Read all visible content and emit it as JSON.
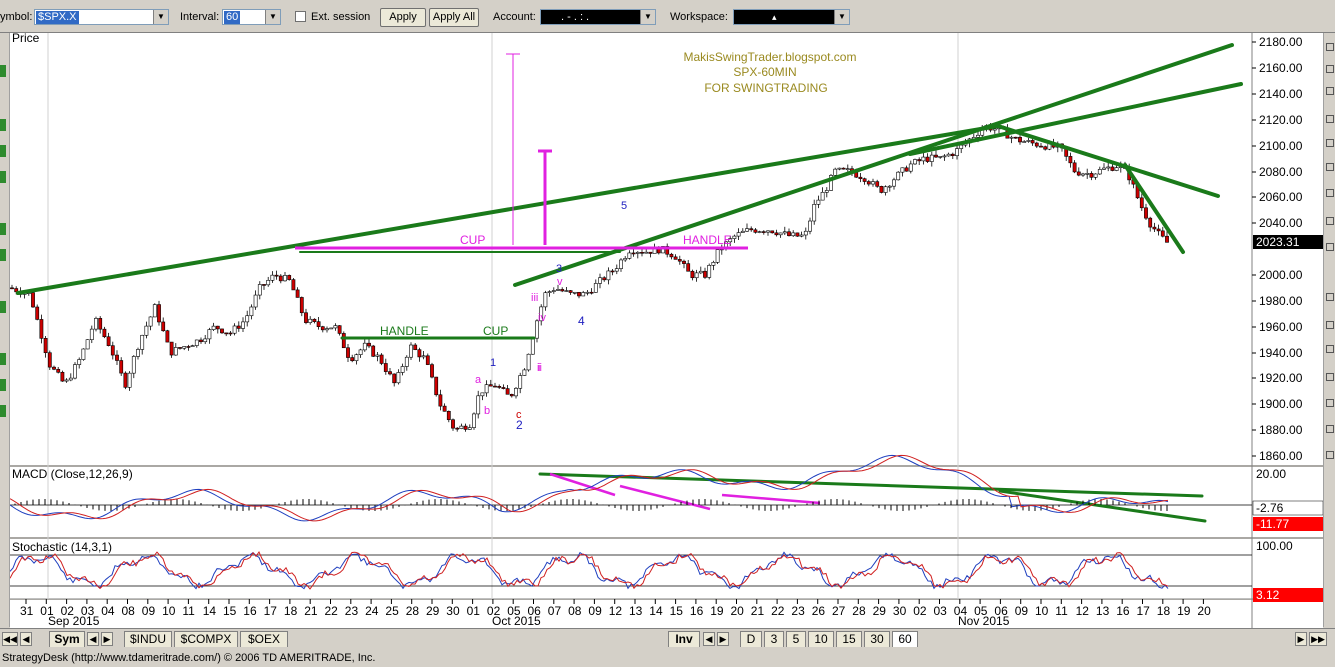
{
  "toolbar": {
    "symbol_label": "ymbol:",
    "symbol_value": "$SPX.X",
    "interval_label": "Interval:",
    "interval_value": "60",
    "ext_session_label": "Ext. session",
    "apply_label": "Apply",
    "apply_all_label": "Apply All",
    "account_label": "Account:",
    "account_value": ". - . : .",
    "workspace_label": "Workspace:",
    "workspace_value": "▴"
  },
  "price_panel": {
    "title": "Price",
    "y_ticks": [
      "2180.00",
      "2160.00",
      "2140.00",
      "2120.00",
      "2100.00",
      "2080.00",
      "2060.00",
      "2040.00",
      "2023.31",
      "2000.00",
      "1980.00",
      "1960.00",
      "1940.00",
      "1920.00",
      "1900.00",
      "1880.00",
      "1860.00"
    ],
    "last_price": "2023.31",
    "watermark": [
      "MakisSwingTrader.blogspot.com",
      "SPX-60MIN",
      "FOR SWINGTRADING"
    ],
    "pattern_labels": [
      "CUP",
      "HANDLE",
      "HANDLE",
      "CUP"
    ],
    "wave_labels": [
      "1",
      "2",
      "3",
      "4",
      "5",
      "a",
      "b",
      "c",
      "i",
      "ii",
      "iii",
      "iv",
      "v"
    ]
  },
  "macd_panel": {
    "title": "MACD (Close,12,26,9)",
    "y_ticks": [
      "20.00"
    ],
    "value_macd": "-2.76",
    "value_signal": "-11.77"
  },
  "stoch_panel": {
    "title": "Stochastic (14,3,1)",
    "y_ticks": [
      "100.00"
    ],
    "value": "3.12"
  },
  "date_axis": {
    "days": [
      "31",
      "01",
      "02",
      "03",
      "04",
      "08",
      "09",
      "10",
      "11",
      "14",
      "15",
      "16",
      "17",
      "18",
      "21",
      "22",
      "23",
      "24",
      "25",
      "28",
      "29",
      "30",
      "01",
      "02",
      "05",
      "06",
      "07",
      "08",
      "09",
      "12",
      "13",
      "14",
      "15",
      "16",
      "19",
      "20",
      "21",
      "22",
      "23",
      "26",
      "27",
      "28",
      "29",
      "30",
      "02",
      "03",
      "04",
      "05",
      "06",
      "09",
      "10",
      "11",
      "12",
      "13",
      "16",
      "17",
      "18",
      "19",
      "20"
    ],
    "months": [
      "Sep 2015",
      "Oct 2015",
      "Nov 2015"
    ]
  },
  "tabs": {
    "sym_label": "Sym",
    "symbols": [
      "$INDU",
      "$COMPX",
      "$OEX"
    ],
    "inv_label": "Inv",
    "intervals": [
      "D",
      "3",
      "5",
      "10",
      "15",
      "30",
      "60"
    ]
  },
  "status_bar": {
    "text": "StrategyDesk (http://www.tdameritrade.com/) © 2006 TD AMERITRADE, Inc."
  },
  "colors": {
    "up_candle": "#ffffff",
    "down_candle": "#cc0000",
    "trendline": "#1a7a1a",
    "pattern": "#e020e0",
    "watermark": "#9a8a20",
    "macd_line": "#1f3fbf",
    "signal_line": "#d02020",
    "last_price_bg": "#000000",
    "signal_bg": "#ff0000"
  }
}
